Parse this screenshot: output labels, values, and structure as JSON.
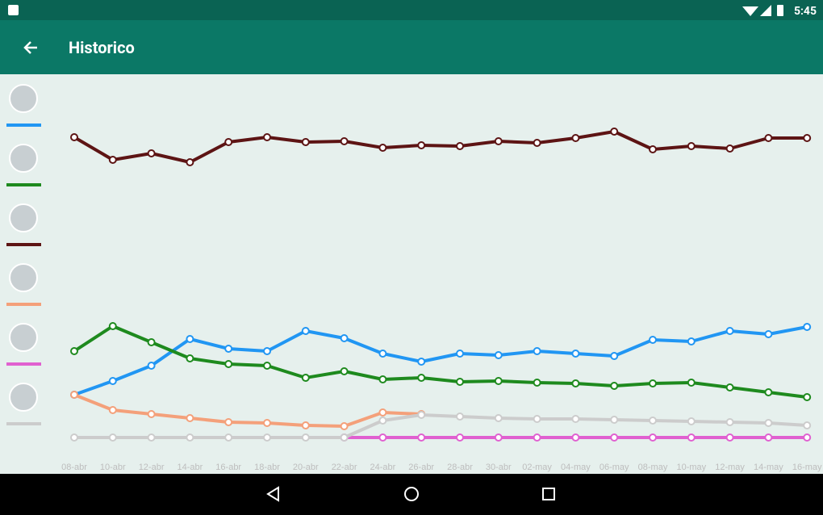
{
  "status_bar": {
    "time": "5:45"
  },
  "app_bar": {
    "title": "Historico"
  },
  "chart_data": {
    "type": "line",
    "categories": [
      "08-abr",
      "10-abr",
      "12-abr",
      "14-abr",
      "16-abr",
      "18-abr",
      "20-abr",
      "22-abr",
      "24-abr",
      "26-abr",
      "28-abr",
      "30-abr",
      "02-may",
      "04-may",
      "06-may",
      "08-may",
      "10-may",
      "12-may",
      "14-may",
      "16-may"
    ],
    "ylim": [
      0,
      45
    ],
    "series": [
      {
        "color": "#2196f3",
        "values": [
          5.3,
          7.0,
          8.9,
          12.2,
          11.0,
          10.7,
          13.2,
          12.3,
          10.4,
          9.4,
          10.4,
          10.2,
          10.7,
          10.4,
          10.1,
          12.1,
          11.9,
          13.2,
          12.8,
          13.7
        ]
      },
      {
        "color": "#1e8a1e",
        "values": [
          10.7,
          13.8,
          11.8,
          9.8,
          9.1,
          8.9,
          7.4,
          8.2,
          7.2,
          7.4,
          6.9,
          7.0,
          6.8,
          6.7,
          6.4,
          6.7,
          6.8,
          6.2,
          5.6,
          5.0
        ]
      },
      {
        "color": "#5d1414",
        "values": [
          37.2,
          34.4,
          35.2,
          34.1,
          36.6,
          37.2,
          36.6,
          36.7,
          35.9,
          36.2,
          36.1,
          36.7,
          36.5,
          37.1,
          37.9,
          35.7,
          36.1,
          35.8,
          37.1,
          37.1
        ]
      },
      {
        "color": "#f4a07a",
        "values": [
          5.3,
          3.4,
          2.9,
          2.4,
          1.9,
          1.8,
          1.5,
          1.4,
          3.1,
          2.9,
          null,
          null,
          null,
          null,
          null,
          null,
          null,
          null,
          null,
          null
        ]
      },
      {
        "color": "#e060d0",
        "values": [
          null,
          null,
          null,
          null,
          null,
          null,
          null,
          0,
          0,
          0,
          0,
          0,
          0,
          0,
          0,
          0,
          0,
          0,
          0,
          0
        ]
      },
      {
        "color": "#cccccc",
        "values": [
          0,
          0,
          0,
          0,
          0,
          0,
          0,
          0,
          2.1,
          2.8,
          2.6,
          2.4,
          2.3,
          2.3,
          2.2,
          2.1,
          2.0,
          1.9,
          1.8,
          1.5
        ]
      }
    ]
  }
}
